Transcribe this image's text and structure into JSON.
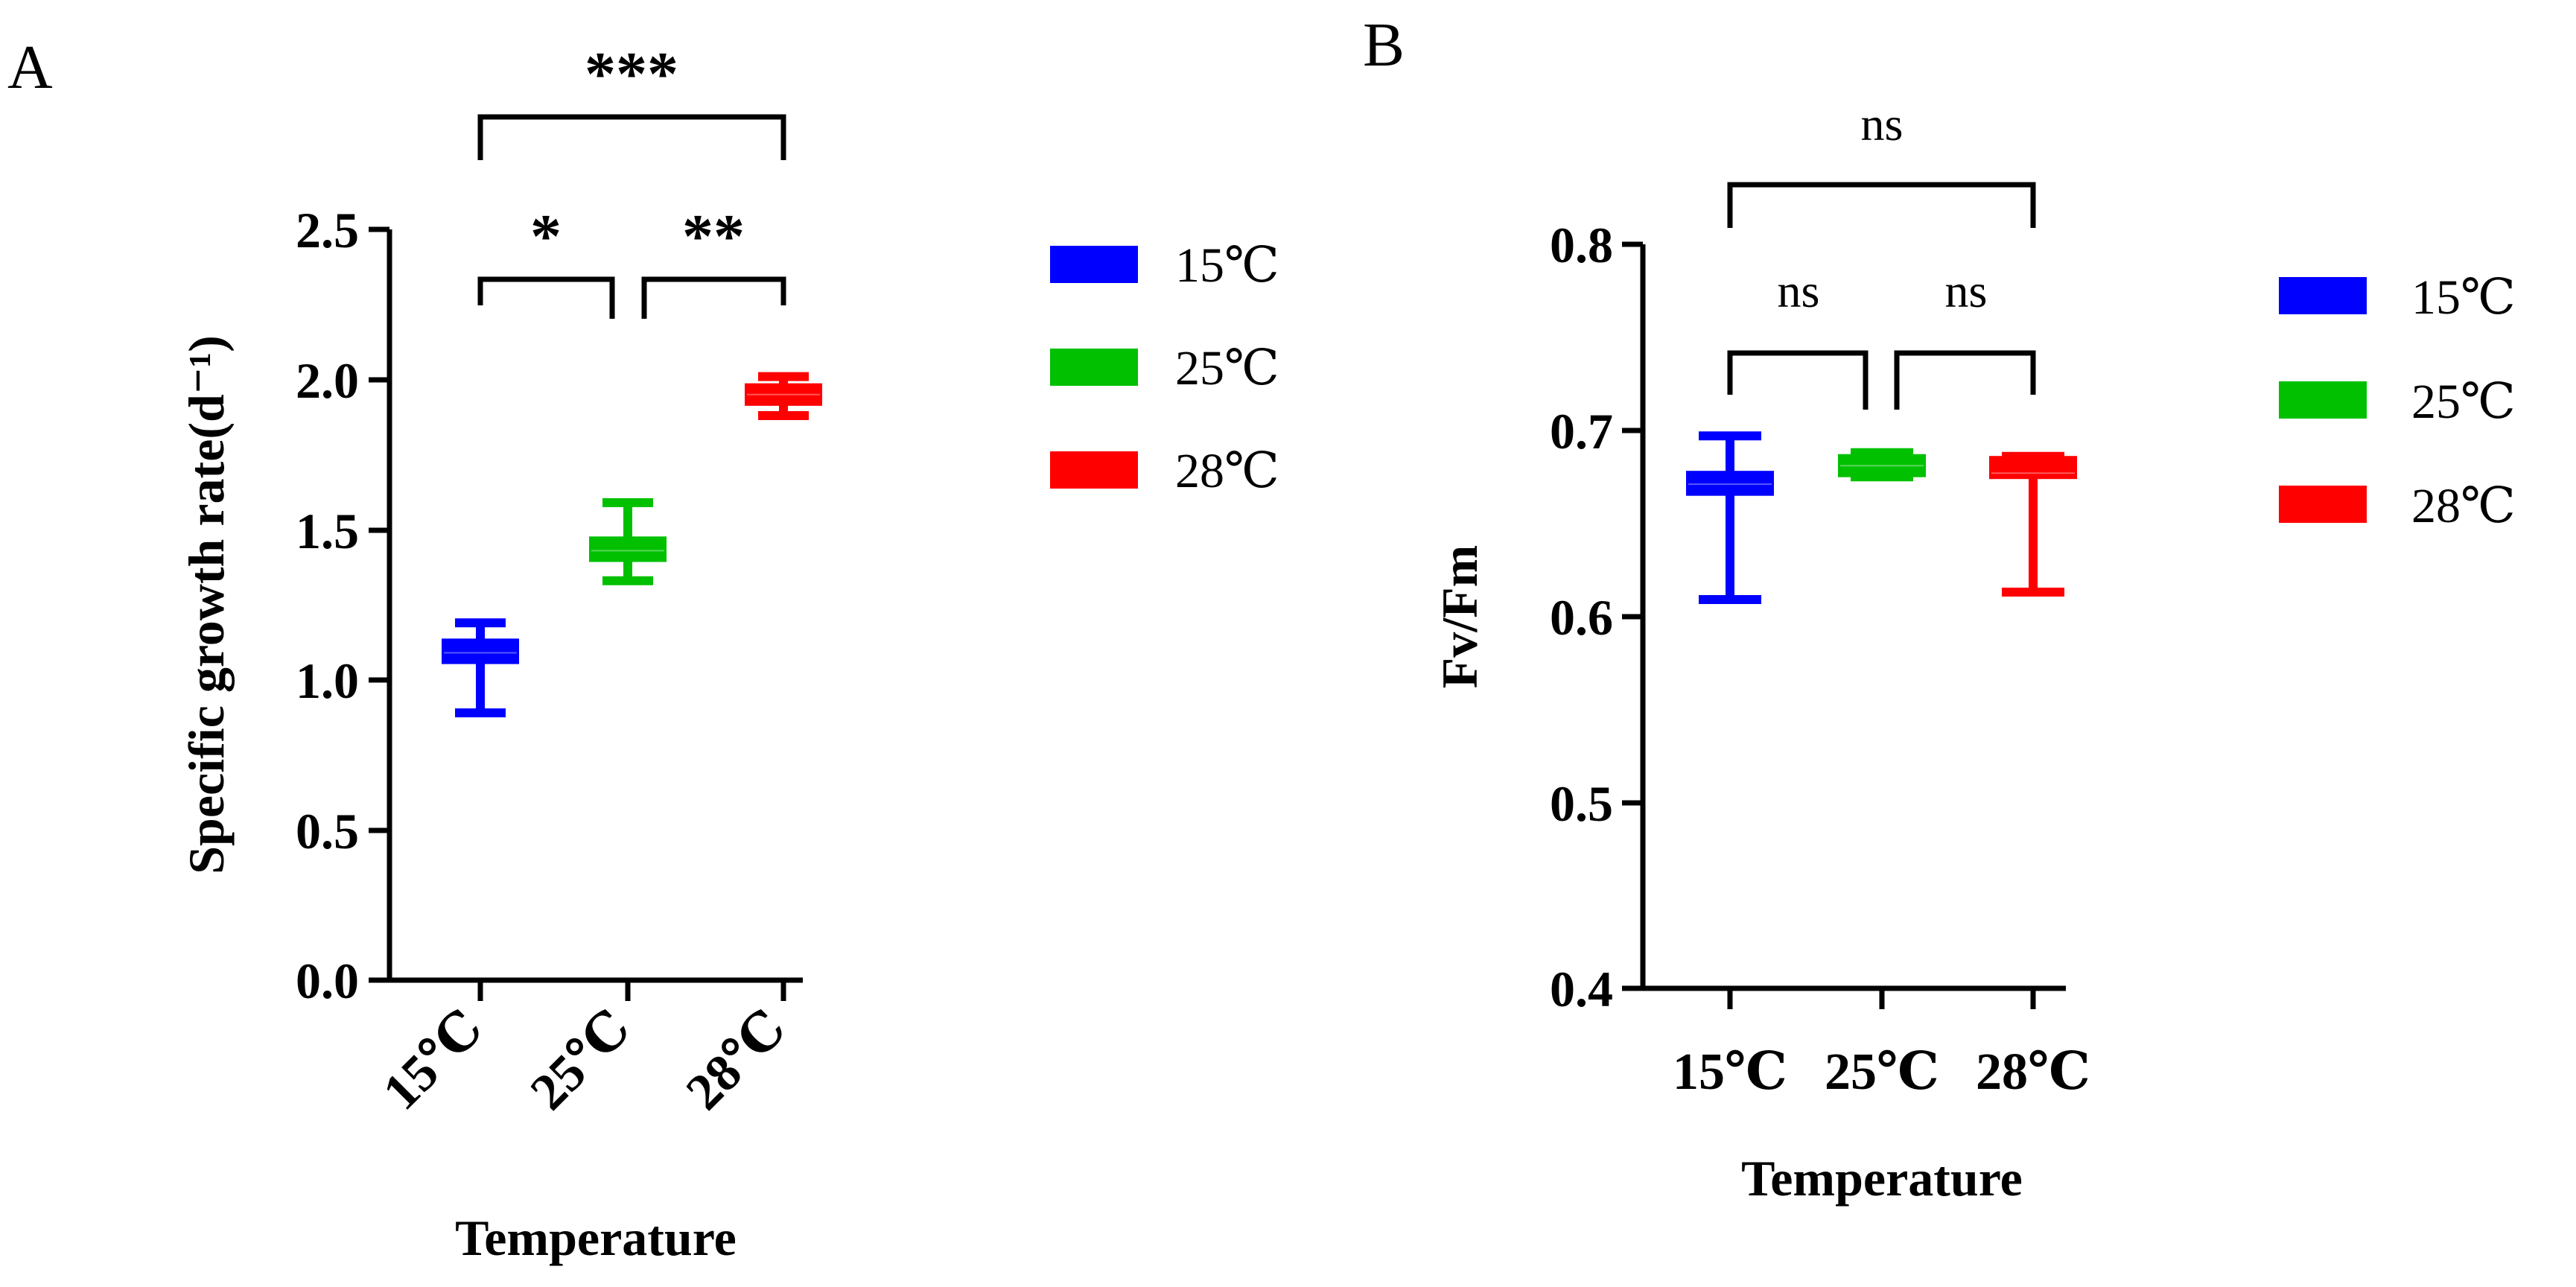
{
  "chart_data": [
    {
      "panel": "A",
      "type": "box",
      "title": "",
      "xlabel": "Temperature",
      "ylabel": "Specific growth rate(d⁻¹)",
      "ylim": [
        0,
        2.5
      ],
      "yticks": [
        "0.0",
        "0.5",
        "1.0",
        "1.5",
        "2.0",
        "2.5"
      ],
      "tick_values": [
        0,
        0.5,
        1.0,
        1.5,
        2.0,
        2.5
      ],
      "categories": [
        "15℃",
        "25℃",
        "28℃"
      ],
      "series": [
        {
          "name": "15℃",
          "color": "#0000ff",
          "min": 0.89,
          "q1": 1.06,
          "median": 1.09,
          "q3": 1.13,
          "max": 1.19
        },
        {
          "name": "25℃",
          "color": "#00c000",
          "min": 1.33,
          "q1": 1.4,
          "median": 1.43,
          "q3": 1.47,
          "max": 1.59
        },
        {
          "name": "28℃",
          "color": "#ff0000",
          "min": 1.88,
          "q1": 1.92,
          "median": 1.95,
          "q3": 1.98,
          "max": 2.01
        }
      ],
      "significance": [
        {
          "from": 0,
          "to": 2,
          "label": "***"
        },
        {
          "from": 0,
          "to": 1,
          "label": "*"
        },
        {
          "from": 1,
          "to": 2,
          "label": "**"
        }
      ],
      "legend": [
        "15℃",
        "25℃",
        "28℃"
      ]
    },
    {
      "panel": "B",
      "type": "box",
      "title": "",
      "xlabel": "Temperature",
      "ylabel": "Fv/Fm",
      "ylim": [
        0.4,
        0.8
      ],
      "yticks": [
        "0.4",
        "0.5",
        "0.6",
        "0.7",
        "0.8"
      ],
      "tick_values": [
        0.4,
        0.5,
        0.6,
        0.7,
        0.8
      ],
      "categories": [
        "15℃",
        "25℃",
        "28℃"
      ],
      "series": [
        {
          "name": "15℃",
          "color": "#0000ff",
          "min": 0.609,
          "q1": 0.666,
          "median": 0.671,
          "q3": 0.677,
          "max": 0.697
        },
        {
          "name": "25℃",
          "color": "#00c000",
          "min": 0.675,
          "q1": 0.676,
          "median": 0.681,
          "q3": 0.686,
          "max": 0.688
        },
        {
          "name": "28℃",
          "color": "#ff0000",
          "min": 0.613,
          "q1": 0.675,
          "median": 0.677,
          "q3": 0.685,
          "max": 0.686
        }
      ],
      "significance": [
        {
          "from": 0,
          "to": 2,
          "label": "ns"
        },
        {
          "from": 0,
          "to": 1,
          "label": "ns"
        },
        {
          "from": 1,
          "to": 2,
          "label": "ns"
        }
      ],
      "legend": [
        "15℃",
        "25℃",
        "28℃"
      ]
    }
  ]
}
